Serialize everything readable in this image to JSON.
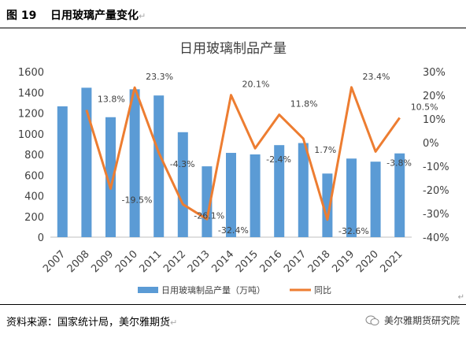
{
  "figure": {
    "number": "图 19",
    "title": "日用玻璃产量变化",
    "source": "资料来源：国家统计局，美尔雅期货",
    "brand": "美尔雅期货研究院",
    "trailing_mark": "↵"
  },
  "chart_data": {
    "type": "bar",
    "title": "日用玻璃制品产量",
    "categories": [
      "2007",
      "2008",
      "2009",
      "2010",
      "2011",
      "2012",
      "2013",
      "2014",
      "2015",
      "2016",
      "2017",
      "2018",
      "2019",
      "2020",
      "2021"
    ],
    "series": [
      {
        "name": "日用玻璃制品产量（万吨）",
        "type": "bar",
        "axis": "left",
        "color": "#5b9bd5",
        "values": [
          1265,
          1445,
          1160,
          1430,
          1370,
          1015,
          685,
          815,
          800,
          890,
          910,
          615,
          760,
          730,
          810
        ]
      },
      {
        "name": "同比",
        "type": "line",
        "axis": "right",
        "color": "#ed7d31",
        "values": [
          null,
          13.8,
          -19.5,
          23.3,
          -4.3,
          -26.1,
          -32.4,
          20.1,
          -2.4,
          11.8,
          1.7,
          -32.6,
          23.4,
          -3.8,
          10.5
        ],
        "labels": [
          "",
          "13.8%",
          "-19.5%",
          "23.3%",
          "-4.3%",
          "-26.1%",
          "-32.4%",
          "20.1%",
          "-2.4%",
          "11.8%",
          "1.7%",
          "-32.6%",
          "23.4%",
          "-3.8%",
          "10.5%"
        ]
      }
    ],
    "y_left": {
      "min": 0,
      "max": 1600,
      "step": 200,
      "ticks": [
        "0",
        "200",
        "400",
        "600",
        "800",
        "1000",
        "1200",
        "1400",
        "1600"
      ]
    },
    "y_right": {
      "min": -40,
      "max": 30,
      "step": 10,
      "ticks": [
        "-40%",
        "-30%",
        "-20%",
        "-10%",
        "0%",
        "10%",
        "20%",
        "30%"
      ]
    },
    "grid": false,
    "legend": "bottom"
  }
}
